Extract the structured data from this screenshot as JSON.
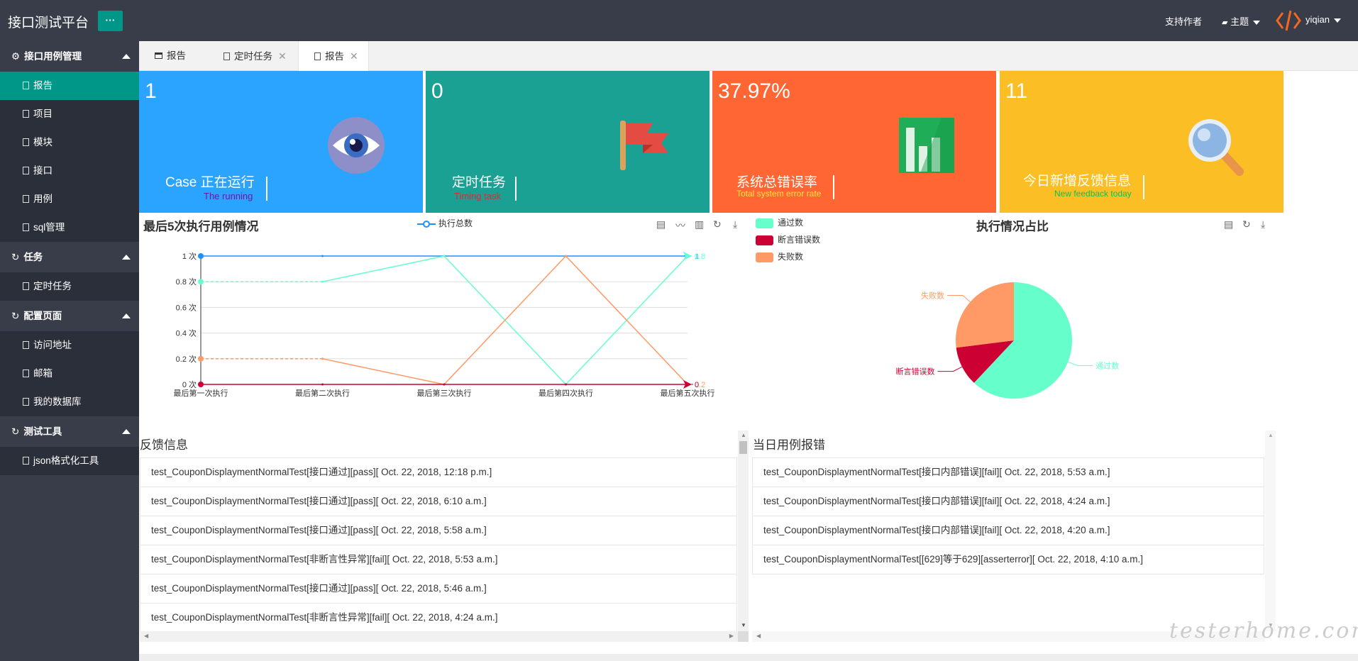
{
  "app": {
    "title": "接口测试平台",
    "menu_btn": "···",
    "support": "支持作者",
    "theme": "主题",
    "user": "yiqian"
  },
  "sidebar": {
    "groups": [
      {
        "label": "接口用例管理",
        "items": [
          "报告",
          "项目",
          "模块",
          "接口",
          "用例",
          "sql管理"
        ]
      },
      {
        "label": "任务",
        "items": [
          "定时任务"
        ]
      },
      {
        "label": "配置页面",
        "items": [
          "访问地址",
          "邮箱",
          "我的数据库"
        ]
      },
      {
        "label": "测试工具",
        "items": [
          "json格式化工具"
        ]
      }
    ]
  },
  "tabs": [
    {
      "label": "报告",
      "closable": false
    },
    {
      "label": "定时任务",
      "closable": true
    },
    {
      "label": "报告",
      "closable": true
    }
  ],
  "cards": [
    {
      "num": "1",
      "title": "Case 正在运行",
      "sub": "The running",
      "bg": "#2ba4ff",
      "sub_color": "#6a1b9a"
    },
    {
      "num": "0",
      "title": "定时任务",
      "sub": "Timing task",
      "bg": "#1ba194",
      "sub_color": "#d32f2f"
    },
    {
      "num": "37.97%",
      "title": "系统总错误率",
      "sub": "Total system error rate",
      "bg": "#ff6633",
      "sub_color": "#ffeb3b"
    },
    {
      "num": "11",
      "title": "今日新增反馈信息",
      "sub": "New feedback today",
      "bg": "#fbbe24",
      "sub_color": "#00c853"
    }
  ],
  "line_chart": {
    "title": "最后5次执行用例情况",
    "legend": "执行总数"
  },
  "pie_chart": {
    "title": "执行情况占比"
  },
  "feedback": {
    "title": "反馈信息",
    "rows": [
      "test_CouponDisplaymentNormalTest[接口通过][pass][ Oct. 22, 2018, 12:18 p.m.]",
      "test_CouponDisplaymentNormalTest[接口通过][pass][ Oct. 22, 2018, 6:10 a.m.]",
      "test_CouponDisplaymentNormalTest[接口通过][pass][ Oct. 22, 2018, 5:58 a.m.]",
      "test_CouponDisplaymentNormalTest[非断言性异常][fail][ Oct. 22, 2018, 5:53 a.m.]",
      "test_CouponDisplaymentNormalTest[接口通过][pass][ Oct. 22, 2018, 5:46 a.m.]",
      "test_CouponDisplaymentNormalTest[非断言性异常][fail][ Oct. 22, 2018, 4:24 a.m.]"
    ]
  },
  "errors": {
    "title": "当日用例报错",
    "rows": [
      "test_CouponDisplaymentNormalTest[接口内部错误][fail][ Oct. 22, 2018, 5:53 a.m.]",
      "test_CouponDisplaymentNormalTest[接口内部错误][fail][ Oct. 22, 2018, 4:24 a.m.]",
      "test_CouponDisplaymentNormalTest[接口内部错误][fail][ Oct. 22, 2018, 4:20 a.m.]",
      "test_CouponDisplaymentNormalTest[[629]等于629][asserterror][ Oct. 22, 2018, 4:10 a.m.]"
    ]
  },
  "watermark": "testerhome.com",
  "chart_data": [
    {
      "type": "line",
      "title": "最后5次执行用例情况",
      "categories": [
        "最后第一次执行",
        "最后第二次执行",
        "最后第三次执行",
        "最后第四次执行",
        "最后第五次执行"
      ],
      "ylim": [
        0,
        1
      ],
      "y_ticks": [
        "0 次",
        "0.2 次",
        "0.4 次",
        "0.6 次",
        "0.8 次",
        "1 次"
      ],
      "series": [
        {
          "name": "执行总数",
          "color": "#1e90ff",
          "values": [
            1,
            1,
            1,
            1,
            1
          ],
          "end_label": "1"
        },
        {
          "color": "#64ffd0",
          "values": [
            0.8,
            0.8,
            1,
            0,
            1
          ],
          "end_label": "0.8"
        },
        {
          "color": "#ff9966",
          "values": [
            0.2,
            0.2,
            0,
            1,
            0
          ],
          "end_label": "0.2"
        },
        {
          "color": "#cc0033",
          "values": [
            0,
            0,
            0,
            0,
            0
          ],
          "end_label": "0"
        }
      ]
    },
    {
      "type": "pie",
      "title": "执行情况占比",
      "slices": [
        {
          "name": "通过数",
          "value": 62,
          "color": "#66ffcc"
        },
        {
          "name": "断言错误数",
          "value": 11,
          "color": "#cc0033"
        },
        {
          "name": "失败数",
          "value": 27,
          "color": "#ff9966"
        }
      ]
    }
  ]
}
